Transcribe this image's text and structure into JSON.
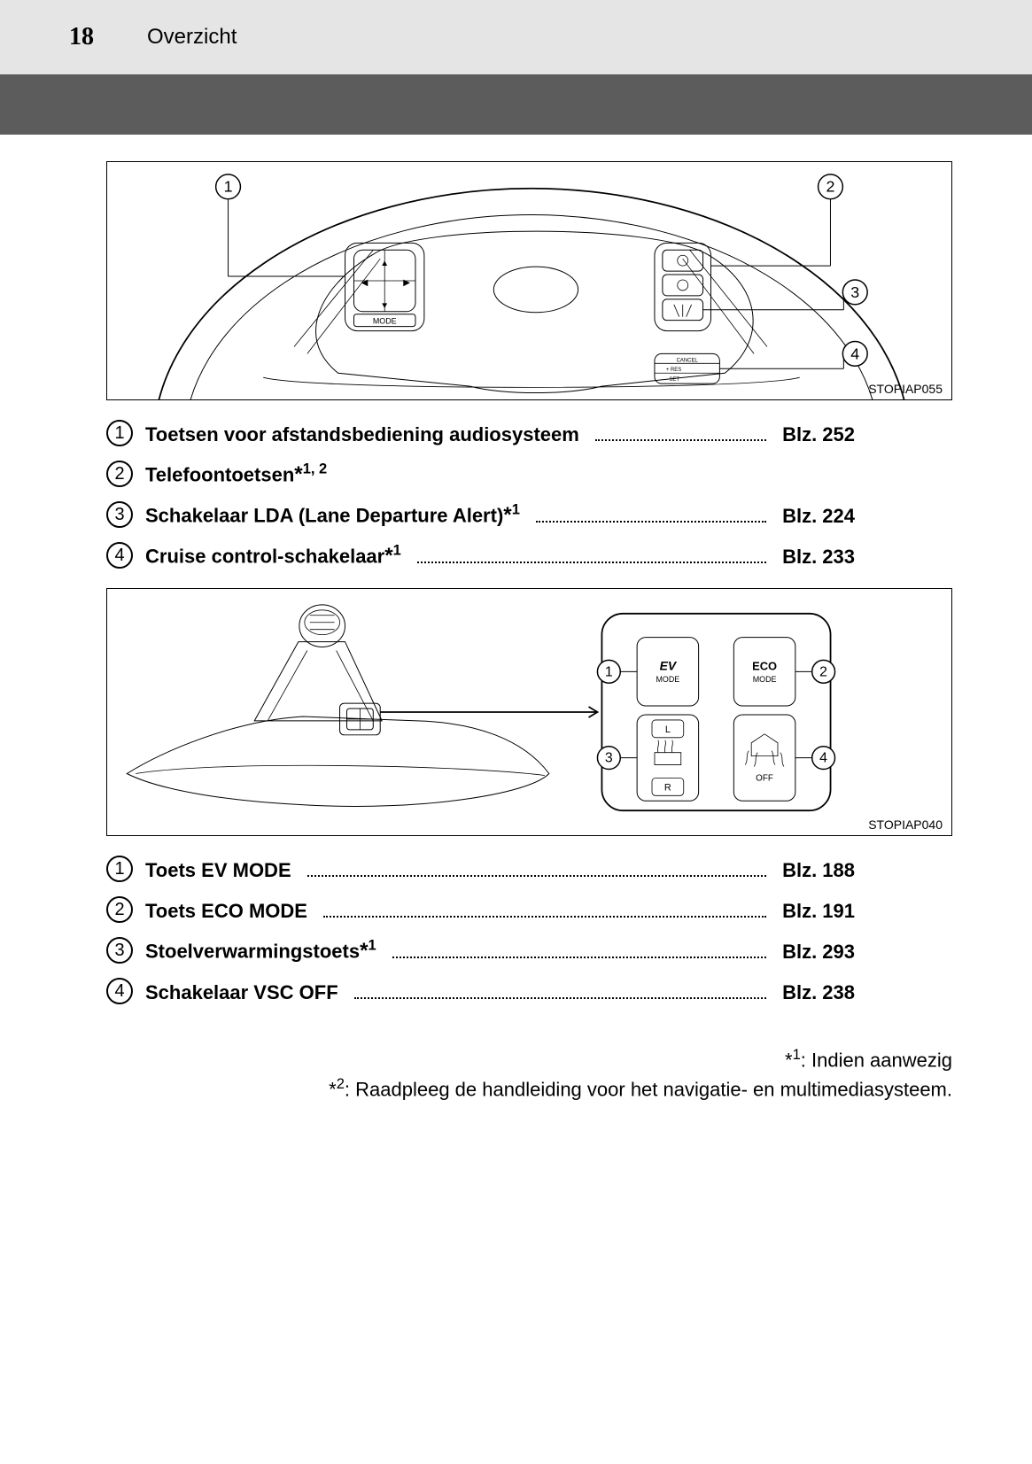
{
  "header": {
    "page_number": "18",
    "section": "Overzicht"
  },
  "figures": {
    "fig1_id": "STOPIAP055",
    "fig2_id": "STOPIAP040",
    "buttons": {
      "ev": {
        "line1": "EV",
        "line2": "MODE"
      },
      "eco": {
        "line1": "ECO",
        "line2": "MODE"
      },
      "seat_top": "L",
      "seat_bottom": "R",
      "vsc_off": "OFF"
    },
    "wheel_mode": "MODE"
  },
  "refs1": [
    {
      "num": "1",
      "label": "Toetsen voor afstandsbediening audiosysteem",
      "sup": "",
      "page": "Blz. 252"
    },
    {
      "num": "2",
      "label": "Telefoontoetsen",
      "sup": "*1, 2",
      "page": ""
    },
    {
      "num": "3",
      "label": "Schakelaar LDA (Lane Departure Alert)",
      "sup": "*1",
      "page": "Blz. 224"
    },
    {
      "num": "4",
      "label": "Cruise control-schakelaar",
      "sup": "*1",
      "page": "Blz. 233"
    }
  ],
  "refs2": [
    {
      "num": "1",
      "label": "Toets EV MODE",
      "sup": "",
      "page": "Blz. 188"
    },
    {
      "num": "2",
      "label": "Toets ECO MODE",
      "sup": "",
      "page": "Blz. 191"
    },
    {
      "num": "3",
      "label": "Stoelverwarmingstoets",
      "sup": "*1",
      "page": "Blz. 293"
    },
    {
      "num": "4",
      "label": "Schakelaar VSC OFF",
      "sup": "",
      "page": "Blz. 238"
    }
  ],
  "footnotes": {
    "n1": ": Indien aanwezig",
    "n2": ": Raadpleeg de handleiding voor het navigatie- en multimediasysteem."
  }
}
